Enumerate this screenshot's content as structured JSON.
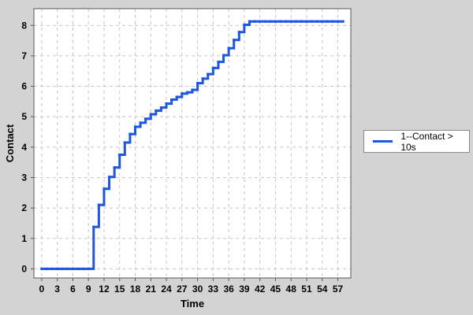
{
  "colors": {
    "background": "#d3d3d3",
    "plot_background": "#ffffff",
    "series": "#1f56e0",
    "grid": "#c4c4c4"
  },
  "legend": {
    "entries": [
      "1--Contact > 10s"
    ]
  },
  "chart_data": {
    "type": "line",
    "step": true,
    "title": "",
    "xlabel": "Time",
    "ylabel": "Contact",
    "xlim": [
      -1.5,
      59.5
    ],
    "ylim": [
      -0.3,
      8.55
    ],
    "xticks": [
      0,
      3,
      6,
      9,
      12,
      15,
      18,
      21,
      24,
      27,
      30,
      33,
      36,
      39,
      42,
      45,
      48,
      51,
      54,
      57
    ],
    "yticks": [
      0,
      1,
      2,
      3,
      4,
      5,
      6,
      7,
      8
    ],
    "grid": true,
    "legend_position": "right",
    "series": [
      {
        "name": "1--Contact > 10s",
        "x": [
          0,
          1,
          2,
          3,
          4,
          5,
          6,
          7,
          8,
          9,
          10,
          11,
          12,
          13,
          14,
          15,
          16,
          17,
          18,
          19,
          20,
          21,
          22,
          23,
          24,
          25,
          26,
          27,
          28,
          29,
          30,
          31,
          32,
          33,
          34,
          35,
          36,
          37,
          38,
          39,
          40,
          41,
          42,
          43,
          44,
          45,
          46,
          47,
          48,
          49,
          50,
          51,
          52,
          53,
          54,
          55,
          56,
          57,
          58
        ],
        "y": [
          0,
          0,
          0,
          0,
          0,
          0,
          0,
          0,
          0,
          0,
          1.38,
          2.1,
          2.63,
          3.02,
          3.33,
          3.75,
          4.15,
          4.43,
          4.67,
          4.8,
          4.93,
          5.08,
          5.2,
          5.3,
          5.43,
          5.56,
          5.65,
          5.76,
          5.8,
          5.88,
          6.1,
          6.25,
          6.4,
          6.6,
          6.8,
          7.02,
          7.25,
          7.52,
          7.78,
          8.02,
          8.13,
          8.13,
          8.13,
          8.13,
          8.13,
          8.13,
          8.13,
          8.13,
          8.13,
          8.13,
          8.13,
          8.13,
          8.13,
          8.13,
          8.13,
          8.13,
          8.13,
          8.13,
          8.13
        ]
      }
    ]
  }
}
